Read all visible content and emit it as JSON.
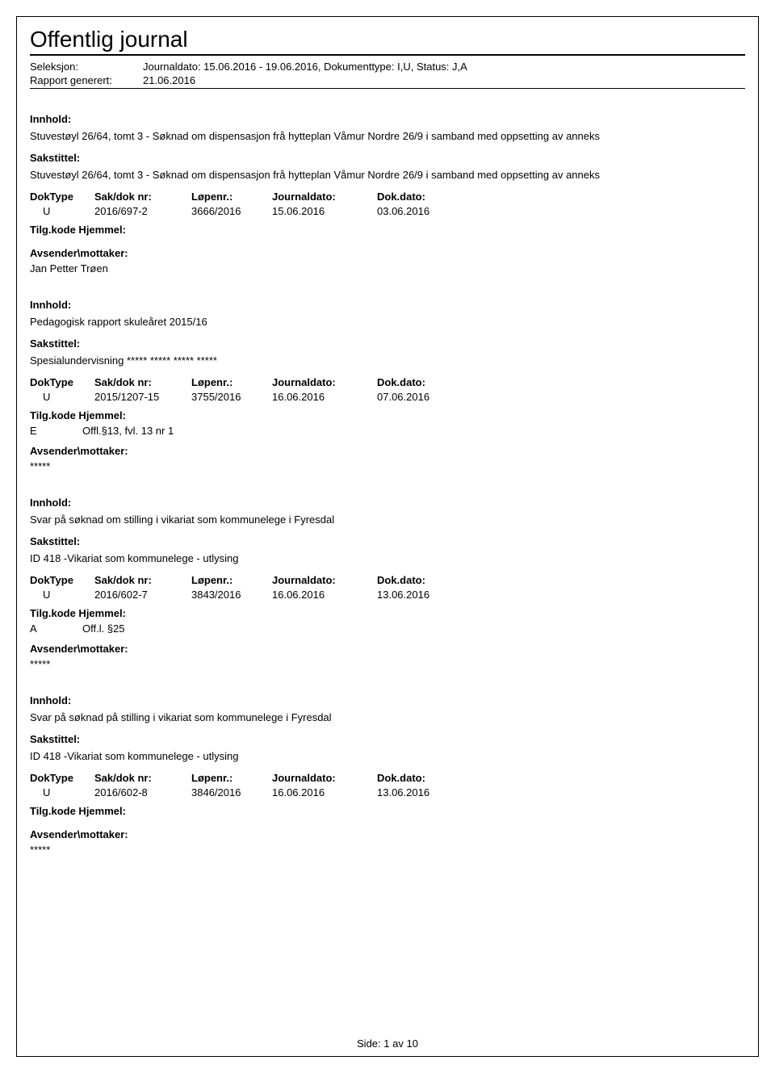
{
  "page_title": "Offentlig journal",
  "selection": {
    "seleksjon_label": "Seleksjon:",
    "seleksjon_value": "Journaldato: 15.06.2016 - 19.06.2016, Dokumenttype: I,U, Status: J,A",
    "rapport_label": "Rapport generert:",
    "rapport_value": "21.06.2016"
  },
  "labels": {
    "innhold": "Innhold:",
    "sakstittel": "Sakstittel:",
    "doktype": "DokType",
    "sakdok": "Sak/dok nr:",
    "lopenr": "Løpenr.:",
    "journaldato": "Journaldato:",
    "dokdato": "Dok.dato:",
    "tilg": "Tilg.kode Hjemmel:",
    "sender": "Avsender\\mottaker:"
  },
  "entries": [
    {
      "innhold": "Stuvestøyl 26/64, tomt 3  - Søknad om dispensasjon frå hytteplan Våmur Nordre 26/9 i samband med oppsetting av anneks",
      "sakstittel": "Stuvestøyl 26/64, tomt 3  - Søknad om dispensasjon frå hytteplan Våmur Nordre 26/9 i samband med oppsetting av anneks",
      "doktype": "U",
      "sakdok": "2016/697-2",
      "lopenr": "3666/2016",
      "journaldato": "15.06.2016",
      "dokdato": "03.06.2016",
      "tilg_code": "",
      "tilg_hjemmel": "",
      "sender_name": "Jan Petter Trøen"
    },
    {
      "innhold": "Pedagogisk rapport skuleåret 2015/16",
      "sakstittel": "Spesialundervisning ***** ***** ***** *****",
      "doktype": "U",
      "sakdok": "2015/1207-15",
      "lopenr": "3755/2016",
      "journaldato": "16.06.2016",
      "dokdato": "07.06.2016",
      "tilg_code": "E",
      "tilg_hjemmel": "Offl.§13, fvl. 13 nr 1",
      "sender_name": "*****"
    },
    {
      "innhold": "Svar på søknad om stilling i vikariat som kommunelege i Fyresdal",
      "sakstittel": "ID 418 -Vikariat som kommunelege - utlysing",
      "doktype": "U",
      "sakdok": "2016/602-7",
      "lopenr": "3843/2016",
      "journaldato": "16.06.2016",
      "dokdato": "13.06.2016",
      "tilg_code": "A",
      "tilg_hjemmel": "Off.l. §25",
      "sender_name": "*****"
    },
    {
      "innhold": "Svar på søknad på stilling i vikariat som kommunelege i Fyresdal",
      "sakstittel": "ID 418 -Vikariat som kommunelege - utlysing",
      "doktype": "U",
      "sakdok": "2016/602-8",
      "lopenr": "3846/2016",
      "journaldato": "16.06.2016",
      "dokdato": "13.06.2016",
      "tilg_code": "",
      "tilg_hjemmel": "",
      "sender_name": "*****"
    }
  ],
  "footer": {
    "side_label": "Side:",
    "current": "1",
    "av": "av",
    "total": "10"
  }
}
